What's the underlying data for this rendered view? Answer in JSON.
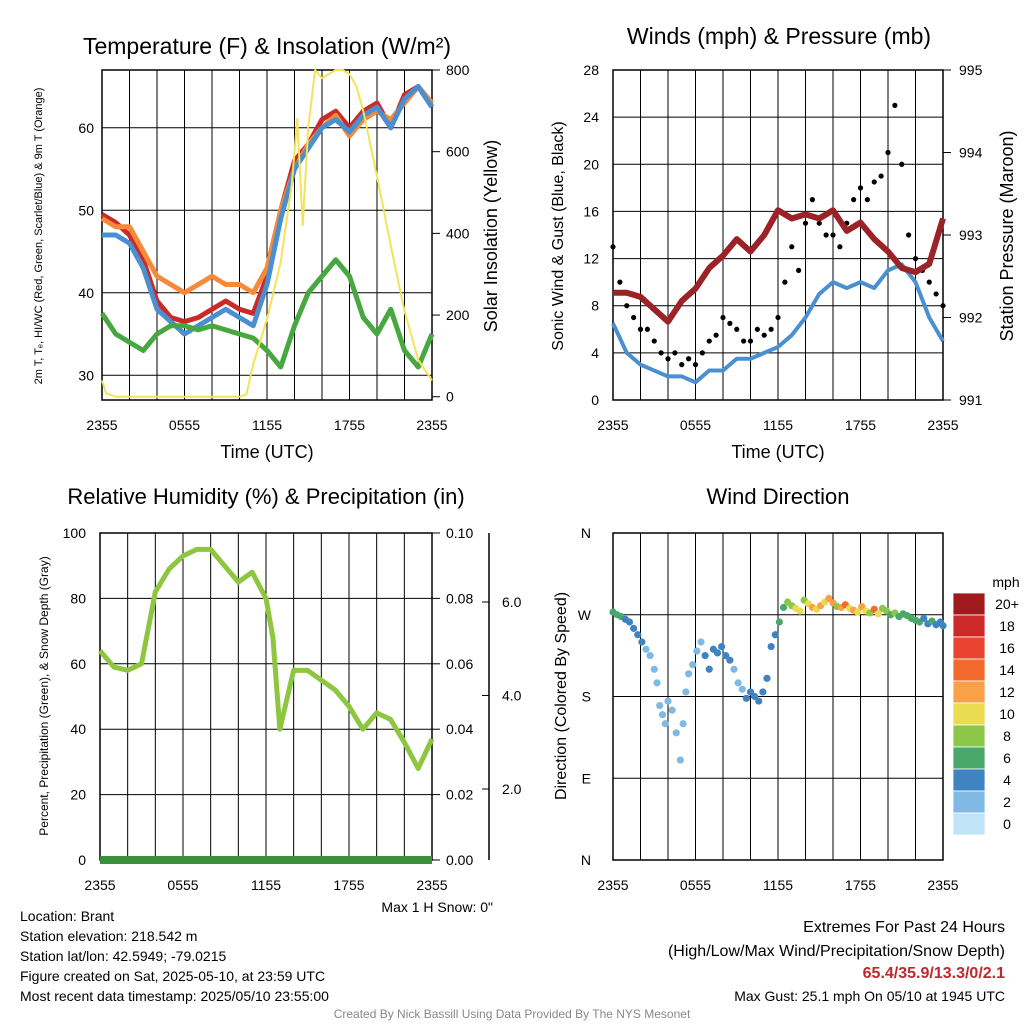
{
  "panels": {
    "temp": {
      "title": "Temperature (F) & Insolation (W/m²)",
      "ylabel_left": "2m T, Tₑ, HI/WC (Red, Green, Scarlet/Blue) & 9m T (Orange)",
      "ylabel_right": "Solar Insolation (Yellow)",
      "xlabel": "Time (UTC)"
    },
    "wind": {
      "title": "Winds (mph) & Pressure (mb)",
      "ylabel_left": "Sonic Wind & Gust (Blue, Black)",
      "ylabel_right": "Station Pressure (Maroon)",
      "xlabel": "Time (UTC)"
    },
    "rh": {
      "title": "Relative Humidity (%) & Precipitation (in)",
      "ylabel_left": "Percent, Precipitation (Green), & Snow Depth (Gray)",
      "snow_note": "Max 1 H Snow: 0\""
    },
    "dir": {
      "title": "Wind Direction",
      "ylabel_left": "Direction (Colored By Speed)",
      "colorbar_unit": "mph",
      "colorbar_labels": [
        "20+",
        "18",
        "16",
        "14",
        "12",
        "10",
        "8",
        "6",
        "4",
        "2",
        "0"
      ],
      "colorbar_colors": [
        "#9e1a1d",
        "#cc2a2a",
        "#e8442f",
        "#f26b2c",
        "#f9a146",
        "#e9dc50",
        "#8cc74a",
        "#4aa86a",
        "#3f83c1",
        "#80b9e3",
        "#bfe3f7"
      ]
    }
  },
  "info": {
    "location": "Location: Brant",
    "elevation": "Station elevation: 218.542 m",
    "latlon": "Station lat/lon: 42.5949; -79.0215",
    "created": "Figure created on Sat, 2025-05-10, at 23:59 UTC",
    "recent": "Most recent data timestamp: 2025/05/10 23:55:00"
  },
  "extremes": {
    "title": "Extremes For Past 24 Hours",
    "subtitle": "(High/Low/Max Wind/Precipitation/Snow Depth)",
    "values": "65.4/35.9/13.3/0/2.1",
    "gust": "Max Gust: 25.1 mph On 05/10 at 1945 UTC"
  },
  "credit": "Created By Nick Bassill Using Data Provided By The NYS Mesonet",
  "chart_data": [
    {
      "type": "line",
      "title": "Temperature (F) & Insolation (W/m²)",
      "xlabel": "Time (UTC)",
      "ylabel": "2m T, Tₑ, HI/WC (Red, Green, Scarlet/Blue) & 9m T (Orange)",
      "y2label": "Solar Insolation (Yellow)",
      "x_ticks": [
        "2355",
        "0555",
        "1155",
        "1755",
        "2355"
      ],
      "x_unit": "hours after 2355 UTC",
      "ylim": [
        27,
        67
      ],
      "y_ticks": [
        30,
        40,
        50,
        60
      ],
      "y2lim": [
        -8,
        800
      ],
      "y2_ticks": [
        0,
        200,
        400,
        600,
        800
      ],
      "series": [
        {
          "name": "2m T",
          "color": "#cc2a2a",
          "axis": "left",
          "x": [
            0,
            1,
            2,
            3,
            4,
            5,
            6,
            7,
            8,
            9,
            10,
            11,
            12,
            13,
            14,
            15,
            16,
            17,
            18,
            19,
            20,
            21,
            22,
            23,
            24
          ],
          "y": [
            49.5,
            48.5,
            47,
            44,
            39,
            37,
            36.5,
            37,
            38,
            39,
            38,
            37.5,
            42,
            50,
            56,
            58,
            61,
            62,
            60,
            62,
            63,
            60,
            64,
            65,
            62.5
          ]
        },
        {
          "name": "9m T",
          "color": "#f58a3a",
          "axis": "left",
          "x": [
            0,
            1,
            2,
            3,
            4,
            5,
            6,
            7,
            8,
            9,
            10,
            11,
            12,
            13,
            14,
            15,
            16,
            17,
            18,
            19,
            20,
            21,
            22,
            23,
            24
          ],
          "y": [
            49,
            48,
            48,
            45,
            42,
            41,
            40,
            41,
            42,
            41,
            41,
            40,
            43,
            50,
            55,
            58,
            60,
            61.5,
            59,
            61,
            62,
            61,
            63,
            65,
            63
          ]
        },
        {
          "name": "HI/WC",
          "color": "#4a90d0",
          "axis": "left",
          "x": [
            0,
            1,
            2,
            3,
            4,
            5,
            6,
            7,
            8,
            9,
            10,
            11,
            12,
            13,
            14,
            15,
            16,
            17,
            18,
            19,
            20,
            21,
            22,
            23,
            24
          ],
          "y": [
            47,
            47,
            46,
            43,
            38,
            36.5,
            35,
            36,
            37,
            38,
            37,
            36,
            41,
            49,
            55,
            57.5,
            60,
            61,
            59.5,
            61.5,
            62.5,
            60,
            63.5,
            65,
            62.5
          ]
        },
        {
          "name": "Tₑ",
          "color": "#46a83e",
          "axis": "left",
          "x": [
            0,
            1,
            2,
            3,
            4,
            5,
            6,
            7,
            8,
            9,
            10,
            11,
            12,
            13,
            14,
            15,
            16,
            17,
            18,
            19,
            20,
            21,
            22,
            23,
            24
          ],
          "y": [
            37.5,
            35,
            34,
            33,
            35,
            36,
            36,
            35.5,
            36,
            35.5,
            35,
            34.5,
            33,
            31,
            36,
            40,
            42,
            44,
            42,
            37,
            35,
            38,
            33,
            31,
            35
          ]
        },
        {
          "name": "Solar Insolation",
          "color": "#f3e35a",
          "axis": "right",
          "x": [
            0,
            0.3,
            1,
            2,
            4,
            6,
            8,
            10,
            10.5,
            11,
            12,
            13,
            13.8,
            14.2,
            14.6,
            15,
            15.5,
            16,
            17,
            17.5,
            18,
            18.5,
            19,
            20,
            21,
            22,
            23,
            24
          ],
          "y": [
            40,
            8,
            0,
            0,
            0,
            0,
            0,
            0,
            5,
            80,
            190,
            330,
            520,
            680,
            420,
            660,
            800,
            780,
            800,
            800,
            790,
            760,
            700,
            540,
            370,
            210,
            90,
            40
          ]
        }
      ]
    },
    {
      "type": "line",
      "title": "Winds (mph) & Pressure (mb)",
      "xlabel": "Time (UTC)",
      "ylabel": "Sonic Wind & Gust (Blue, Black)",
      "y2label": "Station Pressure (Maroon)",
      "x_ticks": [
        "2355",
        "0555",
        "1155",
        "1755",
        "2355"
      ],
      "x_unit": "hours after 2355 UTC",
      "ylim": [
        0,
        28
      ],
      "y_ticks": [
        0,
        4,
        8,
        12,
        16,
        20,
        24,
        28
      ],
      "y2lim": [
        991,
        995
      ],
      "y2_ticks": [
        991,
        992,
        993,
        994,
        995
      ],
      "series": [
        {
          "name": "Sonic Wind",
          "color": "#4a90d0",
          "axis": "left",
          "x": [
            0,
            1,
            2,
            3,
            4,
            5,
            6,
            7,
            8,
            9,
            10,
            11,
            12,
            13,
            14,
            15,
            16,
            17,
            18,
            19,
            20,
            21,
            22,
            23,
            24
          ],
          "y": [
            6.5,
            4,
            3,
            2.5,
            2,
            2,
            1.5,
            2.5,
            2.5,
            3.5,
            3.5,
            4,
            4.5,
            5.5,
            7,
            9,
            10,
            9.5,
            10,
            9.5,
            11,
            11.5,
            10,
            7,
            5
          ]
        },
        {
          "name": "Gust",
          "color": "#000000",
          "axis": "left",
          "markers": true,
          "x": [
            0,
            0.5,
            1,
            1.5,
            2,
            2.5,
            3,
            3.5,
            4,
            4.5,
            5,
            5.5,
            6,
            6.5,
            7,
            7.5,
            8,
            8.5,
            9,
            9.5,
            10,
            10.5,
            11,
            11.5,
            12,
            12.5,
            13,
            13.5,
            14,
            14.5,
            15,
            15.5,
            16,
            16.5,
            17,
            17.5,
            18,
            18.5,
            19,
            19.5,
            20,
            20.5,
            21,
            21.5,
            22,
            22.5,
            23,
            23.5,
            24
          ],
          "y": [
            13,
            10,
            8,
            7,
            6,
            6,
            5,
            4,
            3.5,
            4,
            3,
            3.5,
            3,
            4,
            5,
            5.5,
            7,
            6.5,
            6,
            5,
            5,
            6,
            5.5,
            6,
            7,
            10,
            13,
            11,
            15,
            17,
            15,
            14,
            14,
            13,
            15,
            17,
            18,
            17,
            18.5,
            19,
            21,
            25,
            20,
            14,
            12,
            11,
            10,
            9,
            8
          ]
        },
        {
          "name": "Station Pressure",
          "color": "#9b2226",
          "axis": "right",
          "x": [
            0,
            1,
            2,
            3,
            4,
            5,
            6,
            7,
            8,
            9,
            10,
            11,
            12,
            13,
            14,
            15,
            16,
            17,
            18,
            19,
            20,
            21,
            22,
            23,
            24
          ],
          "y": [
            992.3,
            992.3,
            992.25,
            992.1,
            991.95,
            992.2,
            992.35,
            992.6,
            992.75,
            992.95,
            992.8,
            993.0,
            993.3,
            993.2,
            993.25,
            993.2,
            993.3,
            993.05,
            993.15,
            992.95,
            992.8,
            992.6,
            992.55,
            992.65,
            993.2
          ]
        }
      ]
    },
    {
      "type": "line",
      "title": "Relative Humidity (%) & Precipitation (in)",
      "ylabel": "Percent, Precipitation (Green), & Snow Depth (Gray)",
      "x_ticks": [
        "2355",
        "0555",
        "1155",
        "1755",
        "2355"
      ],
      "x_unit": "hours after 2355 UTC",
      "ylim": [
        0,
        100
      ],
      "y_ticks": [
        0,
        20,
        40,
        60,
        80,
        100
      ],
      "y2lim": [
        0,
        0.1
      ],
      "y2_ticks": [
        "0.00",
        "0.02",
        "0.04",
        "0.06",
        "0.08",
        "0.10"
      ],
      "y3_ticks": [
        "2.0",
        "4.0",
        "6.0"
      ],
      "series": [
        {
          "name": "Relative Humidity",
          "color": "#8dc63f",
          "axis": "left",
          "x": [
            0,
            1,
            2,
            3,
            4,
            5,
            6,
            7,
            8,
            9,
            10,
            11,
            12,
            12.5,
            13,
            14,
            15,
            16,
            17,
            18,
            19,
            20,
            21,
            22,
            23,
            24
          ],
          "y": [
            64,
            59,
            58,
            60,
            82,
            89,
            93,
            95,
            95,
            90,
            85,
            88,
            80,
            68,
            40,
            58,
            58,
            55,
            52,
            47,
            40,
            45,
            43,
            36,
            28,
            37
          ]
        },
        {
          "name": "Precipitation",
          "color": "#3a8f3a",
          "axis": "right",
          "x": [
            0,
            24
          ],
          "y": [
            0,
            0
          ]
        }
      ]
    },
    {
      "type": "scatter",
      "title": "Wind Direction",
      "ylabel": "Direction (Colored By Speed)",
      "x_ticks": [
        "2355",
        "0555",
        "1155",
        "1755",
        "2355"
      ],
      "x_unit": "hours after 2355 UTC",
      "y_ticks": [
        "N",
        "E",
        "S",
        "W",
        "N"
      ],
      "ylim": [
        0,
        360
      ],
      "points": [
        [
          0,
          273,
          5
        ],
        [
          0.3,
          270,
          6
        ],
        [
          0.6,
          268,
          5
        ],
        [
          0.9,
          265,
          4
        ],
        [
          1.2,
          262,
          4
        ],
        [
          1.5,
          255,
          3
        ],
        [
          1.8,
          248,
          3
        ],
        [
          2.1,
          240,
          3
        ],
        [
          2.4,
          232,
          2
        ],
        [
          2.7,
          225,
          2
        ],
        [
          3.0,
          210,
          2
        ],
        [
          3.2,
          195,
          1
        ],
        [
          3.4,
          170,
          1
        ],
        [
          3.6,
          160,
          1
        ],
        [
          3.8,
          150,
          1
        ],
        [
          4.0,
          175,
          2
        ],
        [
          4.3,
          165,
          2
        ],
        [
          4.6,
          140,
          1
        ],
        [
          4.9,
          110,
          1
        ],
        [
          5.1,
          150,
          1
        ],
        [
          5.3,
          185,
          1
        ],
        [
          5.5,
          205,
          2
        ],
        [
          5.8,
          215,
          2
        ],
        [
          6.1,
          230,
          2
        ],
        [
          6.4,
          240,
          2
        ],
        [
          6.7,
          225,
          3
        ],
        [
          7.0,
          210,
          3
        ],
        [
          7.3,
          232,
          3
        ],
        [
          7.6,
          228,
          4
        ],
        [
          7.9,
          235,
          4
        ],
        [
          8.2,
          225,
          3
        ],
        [
          8.5,
          220,
          3
        ],
        [
          8.8,
          210,
          2
        ],
        [
          9.1,
          195,
          2
        ],
        [
          9.4,
          188,
          2
        ],
        [
          9.7,
          178,
          3
        ],
        [
          10.0,
          185,
          3
        ],
        [
          10.3,
          180,
          4
        ],
        [
          10.6,
          175,
          4
        ],
        [
          10.9,
          185,
          3
        ],
        [
          11.2,
          200,
          3
        ],
        [
          11.5,
          235,
          4
        ],
        [
          11.8,
          248,
          4
        ],
        [
          12.1,
          262,
          5
        ],
        [
          12.4,
          278,
          6
        ],
        [
          12.7,
          284,
          7
        ],
        [
          13.0,
          280,
          8
        ],
        [
          13.3,
          277,
          9
        ],
        [
          13.6,
          274,
          10
        ],
        [
          13.9,
          286,
          8
        ],
        [
          14.2,
          282,
          10
        ],
        [
          14.5,
          278,
          11
        ],
        [
          14.8,
          276,
          10
        ],
        [
          15.1,
          280,
          12
        ],
        [
          15.4,
          284,
          9
        ],
        [
          15.7,
          288,
          11
        ],
        [
          16.0,
          283,
          12
        ],
        [
          16.3,
          279,
          8
        ],
        [
          16.6,
          278,
          11
        ],
        [
          16.9,
          281,
          13
        ],
        [
          17.2,
          277,
          10
        ],
        [
          17.5,
          275,
          12
        ],
        [
          17.8,
          273,
          9
        ],
        [
          18.1,
          279,
          11
        ],
        [
          18.4,
          274,
          10
        ],
        [
          18.7,
          272,
          8
        ],
        [
          19.0,
          276,
          13
        ],
        [
          19.3,
          271,
          9
        ],
        [
          19.6,
          277,
          7
        ],
        [
          19.9,
          274,
          8
        ],
        [
          20.2,
          270,
          6
        ],
        [
          20.5,
          272,
          7
        ],
        [
          20.8,
          268,
          6
        ],
        [
          21.1,
          271,
          6
        ],
        [
          21.4,
          269,
          5
        ],
        [
          21.7,
          266,
          5
        ],
        [
          22.0,
          264,
          5
        ],
        [
          22.3,
          262,
          5
        ],
        [
          22.6,
          266,
          4
        ],
        [
          22.9,
          260,
          4
        ],
        [
          23.2,
          263,
          5
        ],
        [
          23.5,
          259,
          4
        ],
        [
          23.8,
          262,
          4
        ],
        [
          24.0,
          258,
          4
        ]
      ],
      "point_format": "[hours, direction_deg, speed_mph]"
    }
  ]
}
